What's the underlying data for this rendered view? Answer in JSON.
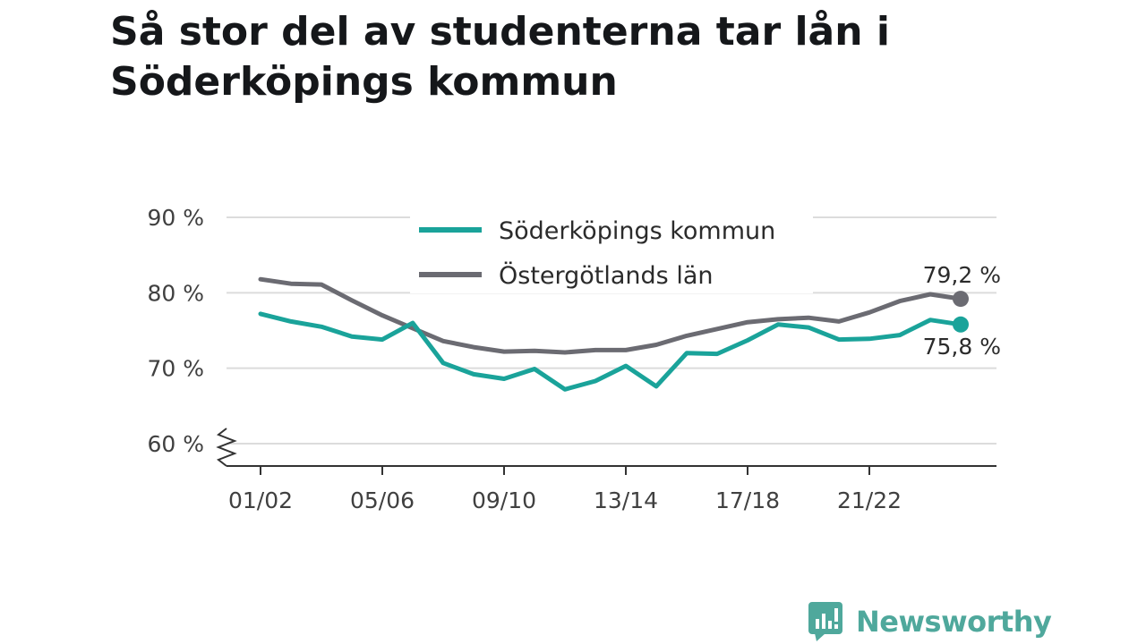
{
  "chart_data": {
    "type": "line",
    "title": "Så stor del av studenterna tar lån i Söderköpings kommun",
    "xlabel": "",
    "ylabel": "",
    "ylim": [
      57,
      90
    ],
    "y_ticks": [
      60,
      70,
      80,
      90
    ],
    "y_tick_labels": [
      "60 %",
      "70 %",
      "80 %",
      "90 %"
    ],
    "x": [
      "01/02",
      "02/03",
      "03/04",
      "04/05",
      "05/06",
      "06/07",
      "07/08",
      "08/09",
      "09/10",
      "10/11",
      "11/12",
      "12/13",
      "13/14",
      "14/15",
      "15/16",
      "16/17",
      "17/18",
      "18/19",
      "19/20",
      "20/21",
      "21/22",
      "22/23",
      "23/24",
      "24/25"
    ],
    "x_tick_labels": [
      "01/02",
      "05/06",
      "09/10",
      "13/14",
      "17/18",
      "21/22"
    ],
    "axis_break": true,
    "grid": true,
    "legend_position": "top-center",
    "series": [
      {
        "name": "Söderköpings kommun",
        "color": "#1aa39a",
        "values": [
          77.2,
          76.2,
          75.5,
          74.2,
          73.8,
          76.0,
          70.7,
          69.2,
          68.6,
          69.9,
          67.2,
          68.3,
          70.3,
          67.6,
          72.0,
          71.9,
          73.7,
          75.8,
          75.4,
          73.8,
          73.9,
          74.4,
          76.4,
          75.8
        ],
        "end_label": "75,8 %"
      },
      {
        "name": "Östergötlands län",
        "color": "#6b6b72",
        "values": [
          81.8,
          81.2,
          81.1,
          79.0,
          77.0,
          75.3,
          73.6,
          72.8,
          72.2,
          72.3,
          72.1,
          72.4,
          72.4,
          73.1,
          74.3,
          75.2,
          76.1,
          76.5,
          76.7,
          76.2,
          77.4,
          78.9,
          79.8,
          79.2
        ],
        "end_label": "79,2 %"
      }
    ]
  },
  "brand": {
    "name": "Newsworthy",
    "color": "#4fa89c"
  }
}
